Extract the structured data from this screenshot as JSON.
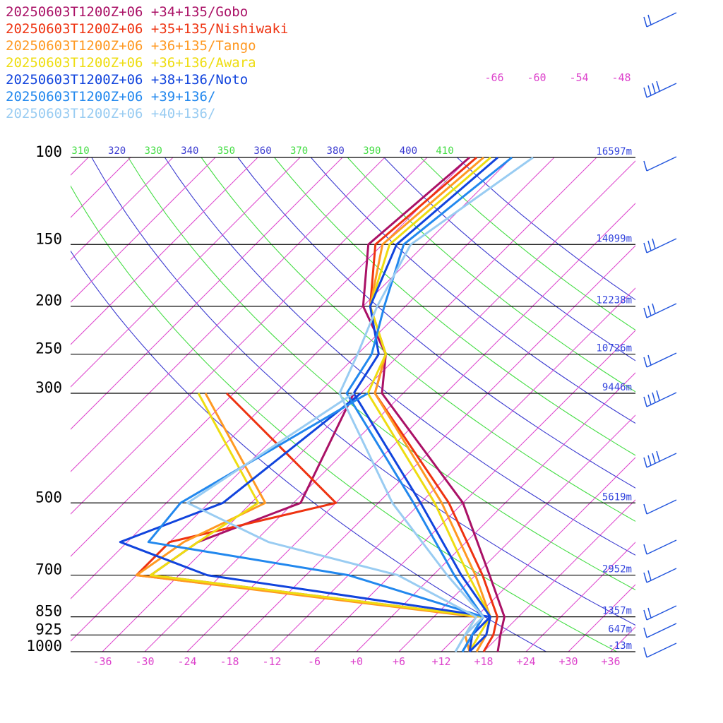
{
  "chart_data": {
    "type": "line",
    "chart_kind": "skew-T log-P sounding",
    "pressure_levels_hPa": [
      100,
      150,
      200,
      250,
      300,
      500,
      700,
      850,
      925,
      1000
    ],
    "pressure_labels": [
      "100",
      "150",
      "200",
      "250",
      "300",
      "500",
      "700",
      "850",
      "925",
      "1000"
    ],
    "height_labels": [
      "16597m",
      "14099m",
      "12238m",
      "10726m",
      "9446m",
      "5619m",
      "2952m",
      "1357m",
      "647m",
      "-13m"
    ],
    "height_label_levels_hPa": [
      100,
      150,
      200,
      250,
      300,
      500,
      700,
      850,
      925,
      1000
    ],
    "x_tick_labels": [
      "-36",
      "-30",
      "-24",
      "-18",
      "-12",
      "-6",
      "+0",
      "+6",
      "+12",
      "+18",
      "+24",
      "+30",
      "+36"
    ],
    "x_tick_values": [
      -36,
      -30,
      -24,
      -18,
      -12,
      -6,
      0,
      6,
      12,
      18,
      24,
      30,
      36
    ],
    "upper_temp_labels": [
      "-66",
      "-60",
      "-54",
      "-48"
    ],
    "upper_temp_values": [
      -66,
      -60,
      -54,
      -48
    ],
    "theta_labels": [
      "310",
      "320",
      "330",
      "340",
      "350",
      "360",
      "370",
      "380",
      "390",
      "400",
      "410"
    ],
    "xlim": [
      -40,
      40
    ],
    "ylim_hPa": [
      1000,
      100
    ],
    "grid": true,
    "legend_position": "top-left",
    "colors": {
      "isotherm": "#dd44cc",
      "isobar": "#000000",
      "theta_blue": "#3a3ad0",
      "theta_green": "#44dd44",
      "height_label": "#3344dd",
      "wind_barb": "#2255dd"
    },
    "series": [
      {
        "name": "20250603T1200Z+06 +34+135/Gobo",
        "color": "#aa1166",
        "temperature": [
          [
            100,
            -54
          ],
          [
            150,
            -56
          ],
          [
            200,
            -48
          ],
          [
            250,
            -38
          ],
          [
            300,
            -33
          ],
          [
            500,
            -6
          ],
          [
            700,
            8
          ],
          [
            850,
            16
          ],
          [
            925,
            18
          ],
          [
            1000,
            20
          ]
        ],
        "dewpoint": [
          [
            300,
            -37
          ],
          [
            500,
            -29
          ],
          [
            600,
            -38
          ],
          [
            700,
            -40
          ],
          [
            850,
            13
          ],
          [
            925,
            14
          ],
          [
            1000,
            16
          ]
        ]
      },
      {
        "name": "20250603T1200Z+06 +35+135/Nishiwaki",
        "color": "#ee3311",
        "temperature": [
          [
            100,
            -53
          ],
          [
            150,
            -55
          ],
          [
            200,
            -47
          ],
          [
            250,
            -38
          ],
          [
            300,
            -34
          ],
          [
            500,
            -8
          ],
          [
            700,
            7
          ],
          [
            850,
            15
          ],
          [
            925,
            17
          ],
          [
            1000,
            18
          ]
        ],
        "dewpoint": [
          [
            300,
            -55
          ],
          [
            500,
            -24
          ],
          [
            600,
            -42
          ],
          [
            700,
            -42
          ],
          [
            850,
            13
          ],
          [
            925,
            14
          ],
          [
            1000,
            16
          ]
        ]
      },
      {
        "name": "20250603T1200Z+06 +36+135/Tango",
        "color": "#ff9922",
        "temperature": [
          [
            100,
            -52
          ],
          [
            150,
            -54
          ],
          [
            200,
            -47
          ],
          [
            250,
            -38
          ],
          [
            300,
            -34
          ],
          [
            500,
            -9
          ],
          [
            700,
            6
          ],
          [
            850,
            14
          ],
          [
            925,
            16
          ],
          [
            1000,
            17
          ]
        ],
        "dewpoint": [
          [
            300,
            -58
          ],
          [
            500,
            -34
          ],
          [
            600,
            -40
          ],
          [
            700,
            -42
          ],
          [
            850,
            12
          ],
          [
            925,
            13
          ],
          [
            1000,
            16
          ]
        ]
      },
      {
        "name": "20250603T1200Z+06 +36+136/Awara",
        "color": "#eedd11",
        "temperature": [
          [
            100,
            -51
          ],
          [
            150,
            -53
          ],
          [
            200,
            -47
          ],
          [
            250,
            -38
          ],
          [
            300,
            -35
          ],
          [
            500,
            -10
          ],
          [
            700,
            5
          ],
          [
            850,
            14
          ],
          [
            925,
            15
          ],
          [
            1000,
            16
          ]
        ],
        "dewpoint": [
          [
            300,
            -59
          ],
          [
            500,
            -35
          ],
          [
            600,
            -38
          ],
          [
            700,
            -40
          ],
          [
            850,
            13
          ],
          [
            925,
            14
          ],
          [
            1000,
            16
          ]
        ]
      },
      {
        "name": "20250603T1200Z+06 +38+136/Noto",
        "color": "#1144dd",
        "temperature": [
          [
            100,
            -50
          ],
          [
            150,
            -52
          ],
          [
            200,
            -47
          ],
          [
            250,
            -39
          ],
          [
            300,
            -37
          ],
          [
            500,
            -12
          ],
          [
            700,
            4
          ],
          [
            850,
            14
          ],
          [
            925,
            16
          ],
          [
            1000,
            16
          ]
        ],
        "dewpoint": [
          [
            300,
            -36
          ],
          [
            500,
            -40
          ],
          [
            600,
            -49
          ],
          [
            700,
            -32
          ],
          [
            850,
            14
          ],
          [
            925,
            14
          ],
          [
            1000,
            16
          ]
        ]
      },
      {
        "name": "20250603T1200Z+06 +39+136/",
        "color": "#2288ee",
        "temperature": [
          [
            100,
            -48
          ],
          [
            150,
            -51
          ],
          [
            200,
            -45
          ],
          [
            250,
            -40
          ],
          [
            300,
            -38
          ],
          [
            500,
            -13
          ],
          [
            700,
            3
          ],
          [
            850,
            13
          ],
          [
            925,
            14
          ],
          [
            1000,
            15
          ]
        ],
        "dewpoint": [
          [
            300,
            -35
          ],
          [
            500,
            -46
          ],
          [
            600,
            -45
          ],
          [
            700,
            -12
          ],
          [
            850,
            13
          ],
          [
            925,
            14
          ],
          [
            1000,
            15
          ]
        ]
      },
      {
        "name": "20250603T1200Z+06 +40+136/",
        "color": "#99ccf2",
        "temperature": [
          [
            100,
            -45
          ],
          [
            150,
            -50
          ],
          [
            200,
            -46
          ],
          [
            250,
            -42
          ],
          [
            300,
            -39
          ],
          [
            500,
            -16
          ],
          [
            700,
            2
          ],
          [
            850,
            13
          ],
          [
            925,
            13
          ],
          [
            1000,
            14
          ]
        ],
        "dewpoint": [
          [
            300,
            -37
          ],
          [
            500,
            -45
          ],
          [
            600,
            -28
          ],
          [
            700,
            -5
          ],
          [
            850,
            12
          ],
          [
            925,
            13
          ],
          [
            1000,
            14
          ]
        ]
      }
    ]
  }
}
